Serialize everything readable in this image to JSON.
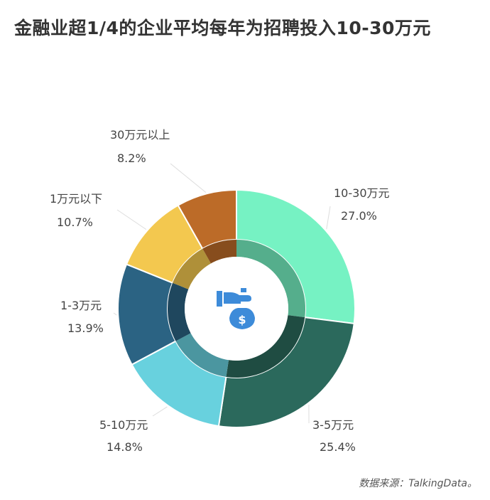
{
  "title": "金融业超1/4的企业平均每年为招聘投入10-30万元",
  "source": "数据来源：TalkingData。",
  "icon": "money-bag-hand-icon",
  "chart_data": {
    "type": "pie",
    "title": "金融业超1/4的企业平均每年为招聘投入10-30万元",
    "categories": [
      "10-30万元",
      "3-5万元",
      "5-10万元",
      "1-3万元",
      "1万元以下",
      "30万元以上"
    ],
    "values": [
      27.0,
      25.4,
      14.8,
      13.9,
      10.7,
      8.2
    ],
    "labels": [
      "27.0%",
      "25.4%",
      "14.8%",
      "13.9%",
      "10.7%",
      "8.2%"
    ],
    "colors": [
      "#76f2c3",
      "#2b695c",
      "#68d1de",
      "#2b6383",
      "#f3c84f",
      "#bc6b28"
    ],
    "legend": "none"
  }
}
